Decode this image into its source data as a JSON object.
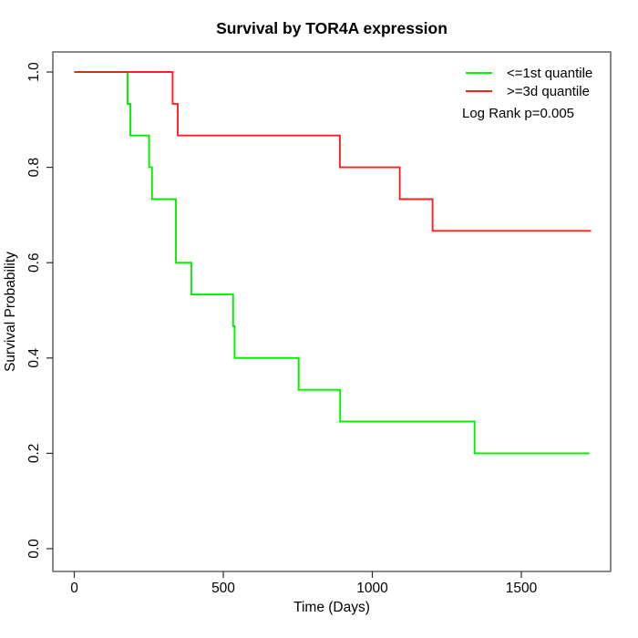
{
  "title": "Survival by TOR4A expression",
  "axes": {
    "x_label": "Time (Days)",
    "y_label": "Survival Probability",
    "x_tick_values": [
      0,
      500,
      1000,
      1500
    ],
    "x_tick_labels": [
      "0",
      "500",
      "1000",
      "1500"
    ],
    "y_tick_values": [
      0.0,
      0.2,
      0.4,
      0.6,
      0.8,
      1.0
    ],
    "y_tick_labels": [
      "0.0",
      "0.2",
      "0.4",
      "0.6",
      "0.8",
      "1.0"
    ]
  },
  "legend": {
    "items": [
      {
        "label": "<=1st quantile",
        "color": "#00f000"
      },
      {
        "label": ">=3d quantile",
        "color": "#ff2020"
      }
    ]
  },
  "annotation": "Log Rank p=0.005",
  "colors": {
    "low_quantile": "#00f000",
    "high_quantile": "#ff2020",
    "overlap_segment": "#c03a00",
    "box_border": "#4a4a4a",
    "tick": "#2a2a2a"
  },
  "chart_data": {
    "type": "line",
    "subtype": "kaplan-meier-step",
    "title": "Survival by TOR4A expression",
    "xlabel": "Time (Days)",
    "ylabel": "Survival Probability",
    "xlim": [
      0,
      1730
    ],
    "ylim": [
      0,
      1
    ],
    "grid": false,
    "legend_position": "top-right",
    "annotation": "Log Rank p=0.005",
    "series": [
      {
        "name": "<=1st quantile",
        "color": "#00f000",
        "start": [
          0,
          1.0
        ],
        "events": [
          [
            179,
            0.9333
          ],
          [
            188,
            0.8667
          ],
          [
            251,
            0.8
          ],
          [
            261,
            0.7333
          ],
          [
            341,
            0.6667
          ],
          [
            341,
            0.6
          ],
          [
            393,
            0.5333
          ],
          [
            533,
            0.4667
          ],
          [
            538,
            0.4
          ],
          [
            753,
            0.3333
          ],
          [
            892,
            0.2667
          ],
          [
            1343,
            0.2
          ]
        ],
        "end_time": 1728,
        "final_survival": 0.2
      },
      {
        "name": ">=3d quantile",
        "color": "#ff2020",
        "start": [
          0,
          1.0
        ],
        "events": [
          [
            330,
            0.9333
          ],
          [
            347,
            0.8667
          ],
          [
            891,
            0.8
          ],
          [
            1092,
            0.7333
          ],
          [
            1202,
            0.6667
          ]
        ],
        "end_time": 1734,
        "final_survival": 0.6667
      }
    ],
    "overlap_segment": {
      "from_time": 0,
      "to_time": 179,
      "survival": 1.0,
      "color": "#c03a00"
    }
  }
}
